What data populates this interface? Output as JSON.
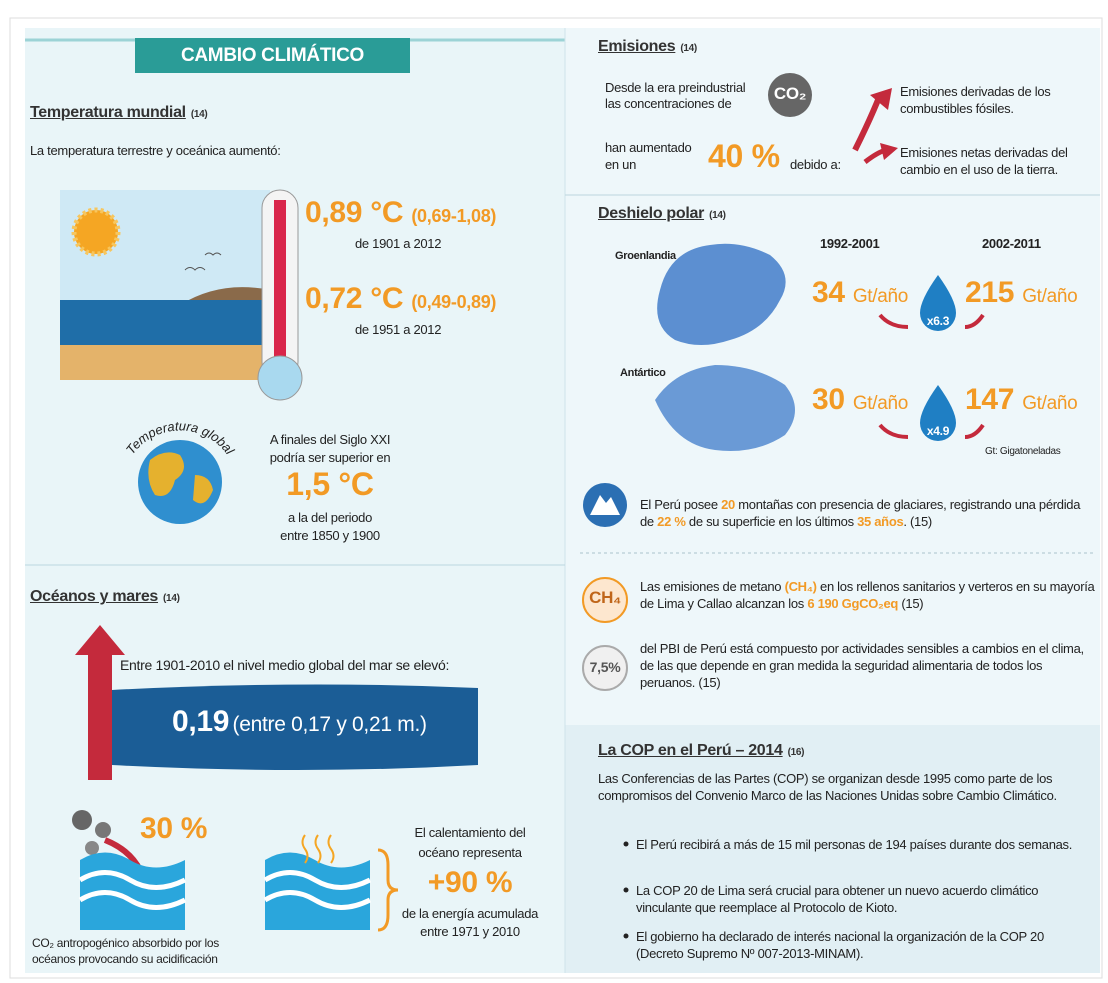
{
  "header": {
    "title": "CAMBIO CLIMÁTICO"
  },
  "temperatura": {
    "heading": "Temperatura mundial",
    "ref": "(14)",
    "intro": "La temperatura terrestre y oceánica aumentó:",
    "readings": [
      {
        "value": "0,89 °C",
        "range": "(0,69-1,08)",
        "period": "de 1901 a 2012"
      },
      {
        "value": "0,72 °C",
        "range": "(0,49-0,89)",
        "period": "de 1951 a 2012"
      }
    ],
    "globe_label": "Temperatura global",
    "projection": {
      "before": [
        "A finales del Siglo XXI",
        "podría ser superior en"
      ],
      "value": "1,5 °C",
      "after": [
        "a la del periodo",
        "entre 1850 y 1900"
      ]
    }
  },
  "oceanos": {
    "heading": "Océanos y mares",
    "ref": "(14)",
    "sea_level_text": "Entre 1901-2010 el nivel medio global del mar se elevó:",
    "sea_value": "0,19",
    "sea_range": "(entre 0,17 y 0,21 m.)",
    "co2_value": "30 %",
    "co2_caption": [
      "CO₂ antropogénico absorbido por los",
      "océanos provocando su acidificación"
    ],
    "warming": {
      "before": [
        "El calentamiento del",
        "océano representa"
      ],
      "value": "+90 %",
      "after": [
        "de la energía acumulada",
        "entre 1971 y 2010"
      ]
    }
  },
  "emisiones": {
    "heading": "Emisiones",
    "ref": "(14)",
    "text_top": [
      "Desde la era preindustrial",
      "las concentraciones de"
    ],
    "co2_icon": "CO₂",
    "text_bottom": [
      "han aumentado",
      "en un"
    ],
    "value": "40 %",
    "because": "debido a:",
    "causes": [
      [
        "Emisiones derivadas de los",
        "combustibles fósiles."
      ],
      [
        "Emisiones netas derivadas del",
        "cambio en el uso de la tierra."
      ]
    ]
  },
  "deshielo": {
    "heading": "Deshielo polar",
    "ref": "(14)",
    "periods": [
      "1992-2001",
      "2002-2011"
    ],
    "unit": "Gt/año",
    "regions": [
      {
        "name": "Groenlandia",
        "before": "34",
        "after": "215",
        "factor": "x6.3"
      },
      {
        "name": "Antártico",
        "before": "30",
        "after": "147",
        "factor": "x4.9"
      }
    ],
    "footnote": "Gt: Gigatoneladas"
  },
  "facts": {
    "glaciers": [
      "El Perú posee ",
      "20",
      " montañas con presencia de glaciares, registrando una pérdida de ",
      "22 %",
      " de su superficie en los últimos ",
      "35 años",
      ". (15)"
    ],
    "methane_icon": "CH₄",
    "methane": [
      "Las emisiones de metano ",
      "(CH₄)",
      " en los rellenos sanitarios y verteros en su mayoría de Lima y Callao alcanzan los ",
      "6 190 GgCO₂eq",
      " (15)"
    ],
    "pbi_icon": "7,5%",
    "pbi": "del PBI de Perú está compuesto por actividades sensibles a cambios en el clima, de las que depende en gran medida la seguridad alimentaria de todos los peruanos. (15)"
  },
  "cop": {
    "heading": "La COP en el Perú – 2014",
    "ref": "(16)",
    "intro": "Las Conferencias de las Partes (COP) se organizan desde 1995 como parte de los compromisos del Convenio Marco de las Naciones Unidas sobre Cambio Climático.",
    "bullets": [
      "El Perú recibirá a más de 15 mil personas de 194 países durante dos semanas.",
      "La COP 20 de Lima será crucial para obtener un nuevo acuerdo climático vinculante que reemplace al Protocolo de Kioto.",
      "El gobierno ha declarado de interés nacional la organización de la COP 20 (Decreto Supremo Nº 007-2013-MINAM)."
    ]
  }
}
